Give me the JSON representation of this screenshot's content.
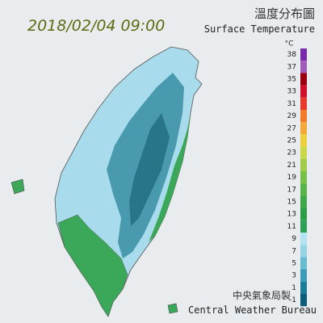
{
  "header": {
    "timestamp": "2018/02/04 09:00",
    "title": "溫度分布圖",
    "subtitle": "Surface Temperature"
  },
  "legend": {
    "unit": "°C",
    "ticks": [
      38,
      37,
      35,
      33,
      31,
      29,
      27,
      25,
      23,
      21,
      19,
      17,
      15,
      13,
      11,
      9,
      7,
      5,
      3,
      1,
      -1
    ],
    "colors": [
      "#7a2ca8",
      "#a05cb8",
      "#9a0010",
      "#d0102a",
      "#e83a2a",
      "#f07a2a",
      "#f4a83a",
      "#ecd040",
      "#c8d848",
      "#a0cc48",
      "#78c048",
      "#58b448",
      "#40a848",
      "#2c9c48",
      "#30a058",
      "#b4e4f0",
      "#94d4e4",
      "#68bcd0",
      "#3c9cb8",
      "#1c7c98",
      "#0c5c78"
    ]
  },
  "footer": {
    "agency": "中央氣象局製",
    "agency_en": "Central Weather Bureau"
  }
}
